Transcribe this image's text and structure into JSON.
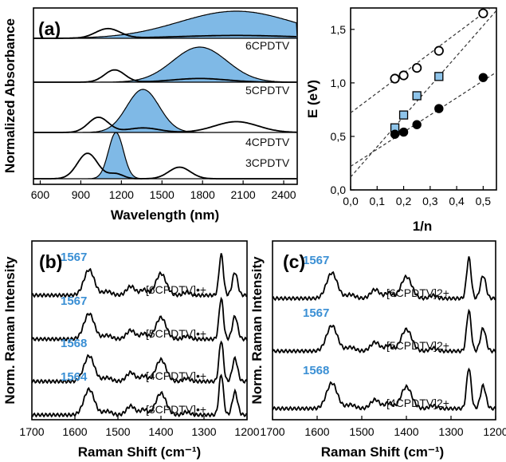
{
  "chart_data": [
    {
      "id": "a",
      "type": "line",
      "panel_label": "(a)",
      "xlabel": "Wavelength (nm)",
      "ylabel": "Normalized Absorbance",
      "xlim": [
        550,
        2500
      ],
      "xticks": [
        "600",
        "900",
        "1200",
        "1500",
        "1800",
        "2100",
        "2400"
      ],
      "xtick_values": [
        600,
        900,
        1200,
        1500,
        1800,
        2100,
        2400
      ],
      "series": [
        {
          "name": "6CPDTV",
          "band_peaks": [
            1100,
            2050
          ]
        },
        {
          "name": "5CPDTV",
          "band_peaks": [
            1150,
            1780
          ]
        },
        {
          "name": "4CPDTV",
          "band_peaks": [
            1030,
            1360
          ]
        },
        {
          "name": "3CPDTV",
          "band_peaks": [
            950,
            1160
          ]
        }
      ]
    },
    {
      "id": "energy",
      "type": "scatter",
      "xlabel": "1/n",
      "ylabel": "E (eV)",
      "xlim": [
        0,
        0.55
      ],
      "ylim": [
        0,
        1.7
      ],
      "xticks": [
        "0,0",
        "0,1",
        "0,2",
        "0,3",
        "0,4",
        "0,5"
      ],
      "xtick_values": [
        0,
        0.1,
        0.2,
        0.3,
        0.4,
        0.5
      ],
      "yticks": [
        "0,0",
        "0,5",
        "1,0",
        "1,5"
      ],
      "ytick_values": [
        0,
        0.5,
        1.0,
        1.5
      ],
      "series": [
        {
          "marker": "open-circle",
          "x": [
            0.167,
            0.2,
            0.25,
            0.333,
            0.5
          ],
          "y": [
            1.04,
            1.07,
            1.14,
            1.3,
            1.65
          ],
          "fit": [
            0.72,
            1.86
          ]
        },
        {
          "marker": "square",
          "x": [
            0.167,
            0.2,
            0.25,
            0.333
          ],
          "y": [
            0.58,
            0.7,
            0.88,
            1.06
          ],
          "fit": [
            0.12,
            2.83
          ]
        },
        {
          "marker": "filled-circle",
          "x": [
            0.167,
            0.2,
            0.25,
            0.333,
            0.5
          ],
          "y": [
            0.52,
            0.54,
            0.61,
            0.76,
            1.05
          ],
          "fit": [
            0.22,
            1.6
          ]
        }
      ]
    },
    {
      "id": "b",
      "type": "line",
      "panel_label": "(b)",
      "xlabel": "Raman Shift (cm⁻¹)",
      "ylabel": "Norm. Raman Intensity",
      "xlim": [
        1700,
        1200
      ],
      "xticks": [
        "1700",
        "1600",
        "1500",
        "1400",
        "1300",
        "1200"
      ],
      "xtick_values": [
        1700,
        1600,
        1500,
        1400,
        1300,
        1200
      ],
      "traces": [
        {
          "label": "[6CPDTV]•+",
          "peak": "1567"
        },
        {
          "label": "[5CPDTV]•+",
          "peak": "1567"
        },
        {
          "label": "[4CPDTV]•+",
          "peak": "1568"
        },
        {
          "label": "[3CPDTV]•+",
          "peak": "1564"
        }
      ]
    },
    {
      "id": "c",
      "type": "line",
      "panel_label": "(c)",
      "xlabel": "Raman Shift (cm⁻¹)",
      "ylabel": "Norm. Raman Intensity",
      "xlim": [
        1700,
        1200
      ],
      "xticks": [
        "1700",
        "1600",
        "1500",
        "1400",
        "1300",
        "1200"
      ],
      "xtick_values": [
        1700,
        1600,
        1500,
        1400,
        1300,
        1200
      ],
      "traces": [
        {
          "label": "[6CPDTV]2+",
          "peak": "1567"
        },
        {
          "label": "[5CPDTV]2+",
          "peak": "1567"
        },
        {
          "label": "[4CPDTV]2+",
          "peak": "1568"
        }
      ]
    }
  ]
}
